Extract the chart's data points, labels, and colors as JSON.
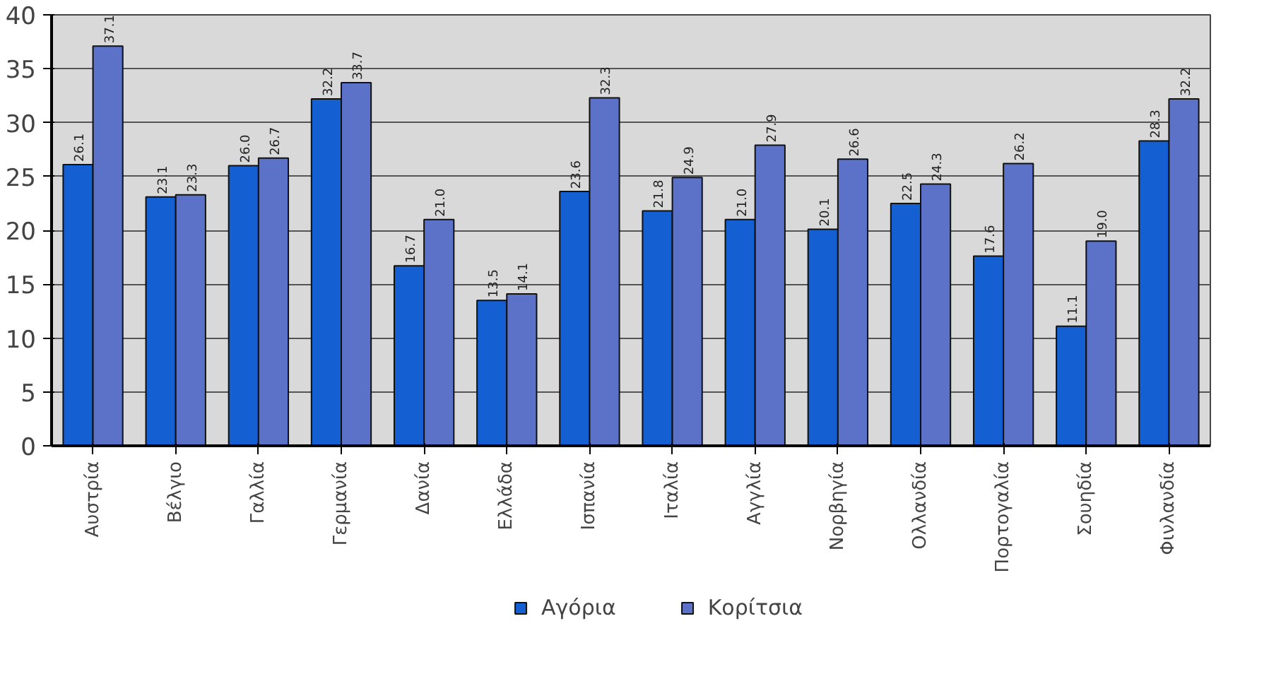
{
  "chart_data": {
    "type": "bar",
    "categories": [
      "Αυστρία",
      "Βέλγιο",
      "Γαλλία",
      "Γερμανία",
      "Δανία",
      "Ελλάδα",
      "Ισπανία",
      "Ιταλία",
      "Αγγλία",
      "Νορβηγία",
      "Ολλανδία",
      "Πορτογαλία",
      "Σουηδία",
      "Φινλανδία"
    ],
    "series": [
      {
        "name": "Αγόρια",
        "color": "#1460d2",
        "values": [
          26.1,
          23.1,
          26.0,
          32.2,
          16.7,
          13.5,
          23.6,
          21.8,
          21.0,
          20.1,
          22.5,
          17.6,
          11.1,
          28.3
        ],
        "value_labels": [
          "26.1",
          "23.1",
          "26.0",
          "32.2",
          "16.7",
          "13.5",
          "23.6",
          "21.8",
          "21.0",
          "20.1",
          "22.5",
          "17.6",
          "11.1",
          "28.3"
        ]
      },
      {
        "name": "Κορίτσια",
        "color": "#5b72c8",
        "values": [
          37.1,
          23.3,
          26.7,
          33.7,
          21.0,
          14.1,
          32.3,
          24.9,
          27.9,
          26.6,
          24.3,
          26.2,
          19.0,
          32.2
        ],
        "value_labels": [
          "37.1",
          "23.3",
          "26.7",
          "33.7",
          "21.0",
          "14.1",
          "32.3",
          "24.9",
          "27.9",
          "26.6",
          "24.3",
          "26.2",
          "19.0",
          "32.2"
        ]
      }
    ],
    "ylim": [
      0,
      40
    ],
    "yticks": [
      0,
      5,
      10,
      15,
      20,
      25,
      30,
      35,
      40
    ],
    "grid": "y",
    "legend": "bottom"
  }
}
